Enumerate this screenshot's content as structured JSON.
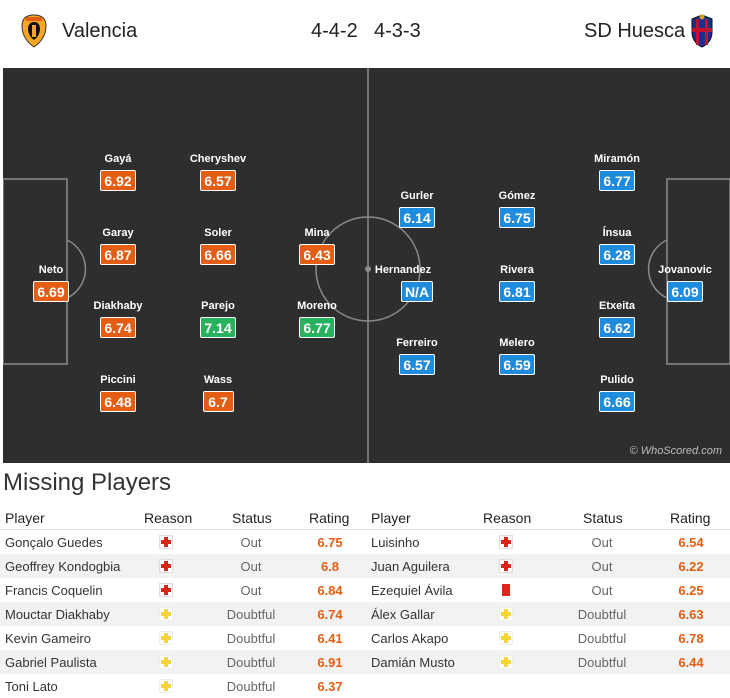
{
  "header": {
    "home_team": "Valencia",
    "home_formation": "4-4-2",
    "away_formation": "4-3-3",
    "away_team": "SD Huesca"
  },
  "colors": {
    "orange": "#e35e12",
    "green": "#27b25e",
    "blue": "#1f8bdd",
    "pitch": "#2e2e2e"
  },
  "pitch": {
    "watermark": "© WhoScored.com",
    "home_players": [
      {
        "name": "Neto",
        "rating": "6.69",
        "tier": "orange"
      },
      {
        "name": "Gayá",
        "rating": "6.92",
        "tier": "orange"
      },
      {
        "name": "Garay",
        "rating": "6.87",
        "tier": "orange"
      },
      {
        "name": "Diakhaby",
        "rating": "6.74",
        "tier": "orange"
      },
      {
        "name": "Piccini",
        "rating": "6.48",
        "tier": "orange"
      },
      {
        "name": "Cheryshev",
        "rating": "6.57",
        "tier": "orange"
      },
      {
        "name": "Soler",
        "rating": "6.66",
        "tier": "orange"
      },
      {
        "name": "Parejo",
        "rating": "7.14",
        "tier": "green"
      },
      {
        "name": "Wass",
        "rating": "6.7",
        "tier": "orange"
      },
      {
        "name": "Mina",
        "rating": "6.43",
        "tier": "orange"
      },
      {
        "name": "Moreno",
        "rating": "6.77",
        "tier": "green"
      }
    ],
    "away_players": [
      {
        "name": "Gurler",
        "rating": "6.14",
        "tier": "blue"
      },
      {
        "name": "Hernandez",
        "rating": "N/A",
        "tier": "blue"
      },
      {
        "name": "Ferreiro",
        "rating": "6.57",
        "tier": "blue"
      },
      {
        "name": "Gómez",
        "rating": "6.75",
        "tier": "blue"
      },
      {
        "name": "Rivera",
        "rating": "6.81",
        "tier": "blue"
      },
      {
        "name": "Melero",
        "rating": "6.59",
        "tier": "blue"
      },
      {
        "name": "Miramón",
        "rating": "6.77",
        "tier": "blue"
      },
      {
        "name": "Ínsua",
        "rating": "6.28",
        "tier": "blue"
      },
      {
        "name": "Etxeita",
        "rating": "6.62",
        "tier": "blue"
      },
      {
        "name": "Pulido",
        "rating": "6.66",
        "tier": "blue"
      },
      {
        "name": "Jovanovic",
        "rating": "6.09",
        "tier": "blue"
      }
    ]
  },
  "missing": {
    "title": "Missing Players",
    "columns": {
      "player": "Player",
      "reason": "Reason",
      "status": "Status",
      "rating": "Rating"
    },
    "home": [
      {
        "player": "Gonçalo Guedes",
        "reason_icon": "injury-icon",
        "status": "Out",
        "rating": "6.75"
      },
      {
        "player": "Geoffrey Kondogbia",
        "reason_icon": "injury-icon",
        "status": "Out",
        "rating": "6.8"
      },
      {
        "player": "Francis Coquelin",
        "reason_icon": "injury-icon",
        "status": "Out",
        "rating": "6.84"
      },
      {
        "player": "Mouctar Diakhaby",
        "reason_icon": "doubtful-icon",
        "status": "Doubtful",
        "rating": "6.74"
      },
      {
        "player": "Kevin Gameiro",
        "reason_icon": "doubtful-icon",
        "status": "Doubtful",
        "rating": "6.41"
      },
      {
        "player": "Gabriel Paulista",
        "reason_icon": "doubtful-icon",
        "status": "Doubtful",
        "rating": "6.91"
      },
      {
        "player": "Toni Lato",
        "reason_icon": "doubtful-icon",
        "status": "Doubtful",
        "rating": "6.37"
      }
    ],
    "away": [
      {
        "player": "Luisinho",
        "reason_icon": "injury-icon",
        "status": "Out",
        "rating": "6.54"
      },
      {
        "player": "Juan Aguilera",
        "reason_icon": "injury-icon",
        "status": "Out",
        "rating": "6.22"
      },
      {
        "player": "Ezequiel Ávila",
        "reason_icon": "red-card-icon",
        "status": "Out",
        "rating": "6.25"
      },
      {
        "player": "Álex Gallar",
        "reason_icon": "doubtful-icon",
        "status": "Doubtful",
        "rating": "6.63"
      },
      {
        "player": "Carlos Akapo",
        "reason_icon": "doubtful-icon",
        "status": "Doubtful",
        "rating": "6.78"
      },
      {
        "player": "Damián Musto",
        "reason_icon": "doubtful-icon",
        "status": "Doubtful",
        "rating": "6.44"
      }
    ]
  }
}
